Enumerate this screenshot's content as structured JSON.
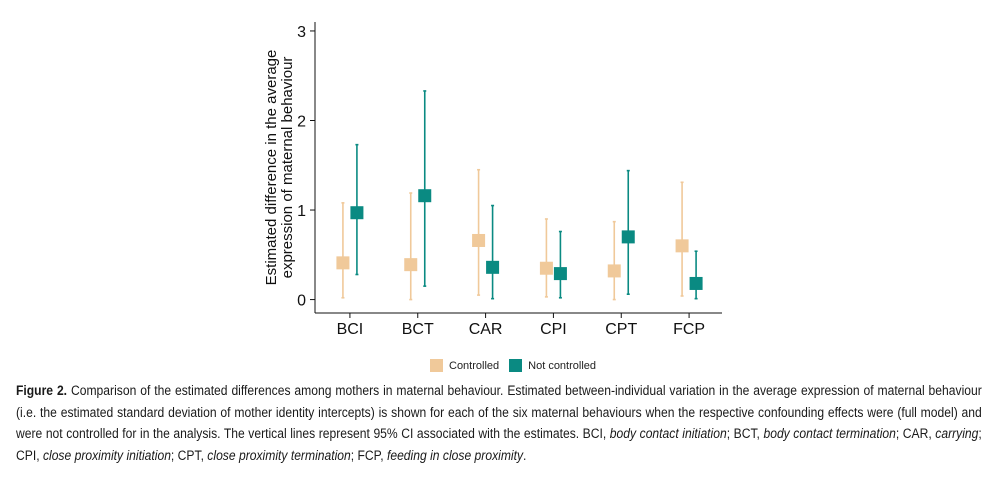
{
  "chart_data": {
    "type": "scatter",
    "subtype": "point-with-error-bars",
    "categories": [
      "BCI",
      "BCT",
      "CAR",
      "CPI",
      "CPT",
      "FCP"
    ],
    "ylabel_line1": "Estimated difference in the average",
    "ylabel_line2": "expression of maternal behaviour",
    "xlabel": "",
    "ylim": [
      -0.15,
      3.1
    ],
    "yticks": [
      0,
      1,
      2,
      3
    ],
    "grid": false,
    "legend_position": "bottom",
    "series": [
      {
        "name": "Controlled",
        "color": "#f0c99a",
        "marker": "square",
        "values": [
          0.41,
          0.39,
          0.66,
          0.35,
          0.32,
          0.6
        ],
        "ci_low": [
          0.02,
          0.0,
          0.05,
          0.03,
          0.0,
          0.04
        ],
        "ci_high": [
          1.08,
          1.19,
          1.45,
          0.9,
          0.87,
          1.31
        ]
      },
      {
        "name": "Not controlled",
        "color": "#0a8a82",
        "marker": "square",
        "values": [
          0.97,
          1.16,
          0.36,
          0.29,
          0.7,
          0.18
        ],
        "ci_low": [
          0.28,
          0.15,
          0.01,
          0.02,
          0.06,
          0.01
        ],
        "ci_high": [
          1.73,
          2.33,
          1.05,
          0.76,
          1.44,
          0.54
        ]
      }
    ]
  },
  "legend": {
    "controlled": "Controlled",
    "not_controlled": "Not controlled"
  },
  "caption": {
    "label": "Figure 2.",
    "text1": " Comparison of the estimated differences among mothers in maternal behaviour. Estimated between-individual variation in the average expression of maternal behaviour (i.e. the estimated standard deviation of mother identity intercepts) is shown for each of the six maternal behaviours when the respective confounding effects were (full model) and were not controlled for in the analysis. The vertical lines represent 95% CI associated with the estimates. BCI, ",
    "bci": "body contact initiation",
    "sep1": "; BCT, ",
    "bct": "body contact termination",
    "sep2": "; CAR, ",
    "car": "carrying",
    "sep3": "; CPI, ",
    "cpi": "close proximity initiation",
    "sep4": "; CPT, ",
    "cpt": "close proximity termination",
    "sep5": "; FCP, ",
    "fcp": "feeding in close proximity",
    "end": "."
  }
}
